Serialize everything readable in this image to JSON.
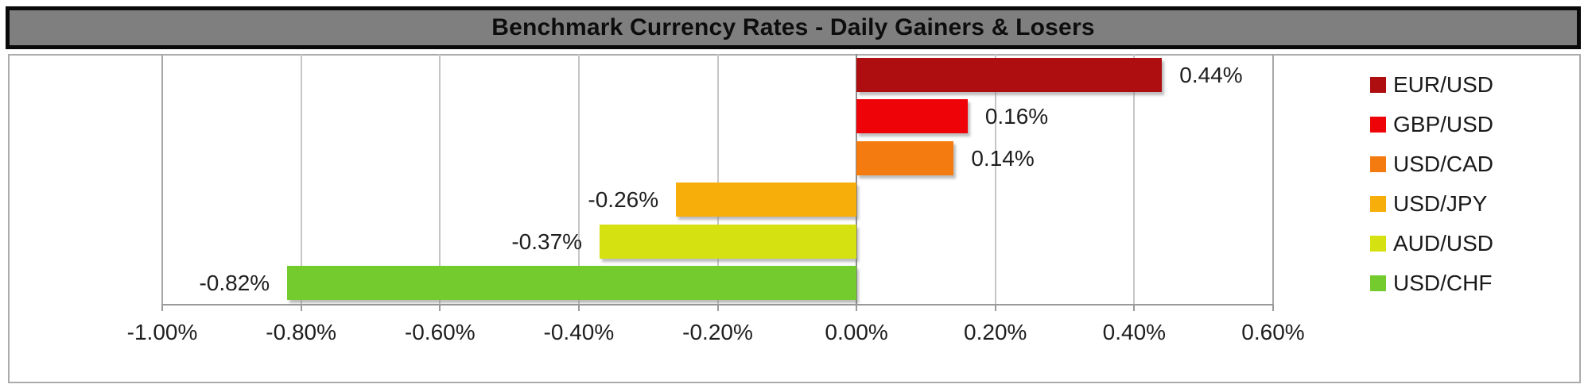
{
  "title": "Benchmark Currency Rates - Daily Gainers & Losers",
  "colors": {
    "title_bg": "#7f7f7f",
    "title_border": "#0a0a0a",
    "chart_border": "#ababab",
    "gridline": "#c6c6c6",
    "axis_line": "#9a9a9a",
    "text": "#1e1e1e"
  },
  "chart_data": {
    "type": "bar",
    "orientation": "horizontal",
    "title": "Benchmark Currency Rates - Daily Gainers & Losers",
    "xlabel": "",
    "ylabel": "",
    "xlim": [
      -1.0,
      0.6
    ],
    "grid": true,
    "legend_position": "right",
    "series": [
      {
        "name": "EUR/USD",
        "value": 0.44,
        "data_label": "0.44%",
        "color": "#ae0e10"
      },
      {
        "name": "GBP/USD",
        "value": 0.16,
        "data_label": "0.16%",
        "color": "#ee0408"
      },
      {
        "name": "USD/CAD",
        "value": 0.14,
        "data_label": "0.14%",
        "color": "#f47b10"
      },
      {
        "name": "USD/JPY",
        "value": -0.26,
        "data_label": "-0.26%",
        "color": "#f7ad0a"
      },
      {
        "name": "AUD/USD",
        "value": -0.37,
        "data_label": "-0.37%",
        "color": "#d5e111"
      },
      {
        "name": "USD/CHF",
        "value": -0.82,
        "data_label": "-0.82%",
        "color": "#74cb2e"
      }
    ],
    "x_ticks": [
      {
        "value": -1.0,
        "label": "-1.00%"
      },
      {
        "value": -0.8,
        "label": "-0.80%"
      },
      {
        "value": -0.6,
        "label": "-0.60%"
      },
      {
        "value": -0.4,
        "label": "-0.40%"
      },
      {
        "value": -0.2,
        "label": "-0.20%"
      },
      {
        "value": 0.0,
        "label": "0.00%"
      },
      {
        "value": 0.2,
        "label": "0.20%"
      },
      {
        "value": 0.4,
        "label": "0.40%"
      },
      {
        "value": 0.6,
        "label": "0.60%"
      }
    ]
  }
}
